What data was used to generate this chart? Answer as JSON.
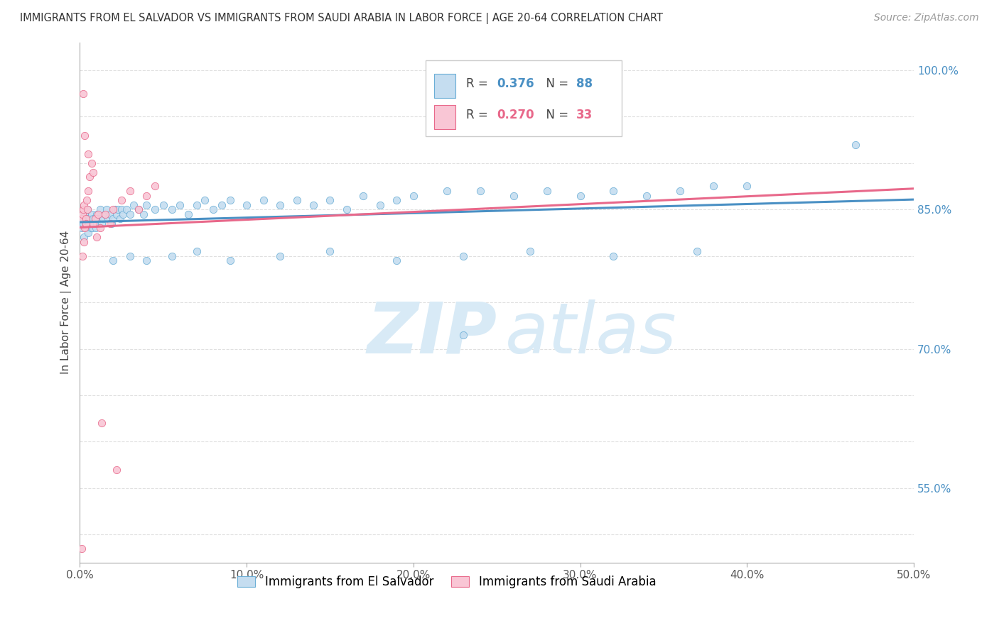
{
  "title": "IMMIGRANTS FROM EL SALVADOR VS IMMIGRANTS FROM SAUDI ARABIA IN LABOR FORCE | AGE 20-64 CORRELATION CHART",
  "source": "Source: ZipAtlas.com",
  "ylabel": "In Labor Force | Age 20-64",
  "xmin": 0.0,
  "xmax": 50.0,
  "ymin": 47.0,
  "ymax": 103.0,
  "legend_blue_r": "0.376",
  "legend_blue_n": "88",
  "legend_pink_r": "0.270",
  "legend_pink_n": "33",
  "blue_scatter_color": "#c5ddf0",
  "blue_scatter_edge": "#6aaed6",
  "blue_line_color": "#4a90c4",
  "pink_scatter_color": "#f9c6d5",
  "pink_scatter_edge": "#e8688a",
  "pink_line_color": "#e8688a",
  "grid_color": "#e0e0e0",
  "ytick_vals": [
    50,
    55,
    60,
    65,
    70,
    75,
    80,
    85,
    90,
    95,
    100
  ],
  "ytick_show": [
    false,
    true,
    false,
    false,
    true,
    false,
    false,
    true,
    false,
    false,
    true
  ],
  "watermark_color": "#d8eaf6",
  "blue_x": [
    0.1,
    0.15,
    0.2,
    0.25,
    0.3,
    0.35,
    0.4,
    0.45,
    0.5,
    0.55,
    0.6,
    0.65,
    0.7,
    0.75,
    0.8,
    0.85,
    0.9,
    0.95,
    1.0,
    1.0,
    1.1,
    1.2,
    1.3,
    1.4,
    1.5,
    1.6,
    1.7,
    1.8,
    1.9,
    2.0,
    2.1,
    2.2,
    2.3,
    2.4,
    2.5,
    2.6,
    2.8,
    3.0,
    3.2,
    3.5,
    3.8,
    4.0,
    4.5,
    5.0,
    5.5,
    6.0,
    6.5,
    7.0,
    7.5,
    8.0,
    8.5,
    9.0,
    10.0,
    11.0,
    12.0,
    13.0,
    14.0,
    15.0,
    16.0,
    17.0,
    18.0,
    19.0,
    20.0,
    22.0,
    23.0,
    24.0,
    26.0,
    28.0,
    30.0,
    32.0,
    34.0,
    36.0,
    38.0,
    40.0,
    46.5,
    2.0,
    3.0,
    4.0,
    5.5,
    7.0,
    9.0,
    12.0,
    15.0,
    19.0,
    23.0,
    27.0,
    32.0,
    37.0
  ],
  "blue_y": [
    83.0,
    84.0,
    83.5,
    82.0,
    84.5,
    83.0,
    84.0,
    85.0,
    82.5,
    83.5,
    84.0,
    83.0,
    84.5,
    83.0,
    84.0,
    83.5,
    84.0,
    83.0,
    83.5,
    84.5,
    84.0,
    85.0,
    83.5,
    84.0,
    84.5,
    85.0,
    84.0,
    84.5,
    83.5,
    84.0,
    85.0,
    84.5,
    85.0,
    84.0,
    85.0,
    84.5,
    85.0,
    84.5,
    85.5,
    85.0,
    84.5,
    85.5,
    85.0,
    85.5,
    85.0,
    85.5,
    84.5,
    85.5,
    86.0,
    85.0,
    85.5,
    86.0,
    85.5,
    86.0,
    85.5,
    86.0,
    85.5,
    86.0,
    85.0,
    86.5,
    85.5,
    86.0,
    86.5,
    87.0,
    71.5,
    87.0,
    86.5,
    87.0,
    86.5,
    87.0,
    86.5,
    87.0,
    87.5,
    87.5,
    92.0,
    79.5,
    80.0,
    79.5,
    80.0,
    80.5,
    79.5,
    80.0,
    80.5,
    79.5,
    80.0,
    80.5,
    80.0,
    80.5
  ],
  "pink_x": [
    0.1,
    0.15,
    0.2,
    0.25,
    0.3,
    0.35,
    0.4,
    0.5,
    0.6,
    0.7,
    0.8,
    0.9,
    1.0,
    1.1,
    1.2,
    1.5,
    1.8,
    2.0,
    2.5,
    3.0,
    3.5,
    4.0,
    4.5,
    0.2,
    0.3,
    0.5,
    0.8,
    1.3,
    2.2,
    0.15,
    0.25,
    0.35,
    0.45
  ],
  "pink_y": [
    84.0,
    84.5,
    85.0,
    85.5,
    83.0,
    84.0,
    86.0,
    87.0,
    88.5,
    90.0,
    83.5,
    84.0,
    82.0,
    84.5,
    83.0,
    84.5,
    83.5,
    85.0,
    86.0,
    87.0,
    85.0,
    86.5,
    87.5,
    97.5,
    93.0,
    91.0,
    89.0,
    62.0,
    57.0,
    80.0,
    81.5,
    83.5,
    85.0
  ]
}
